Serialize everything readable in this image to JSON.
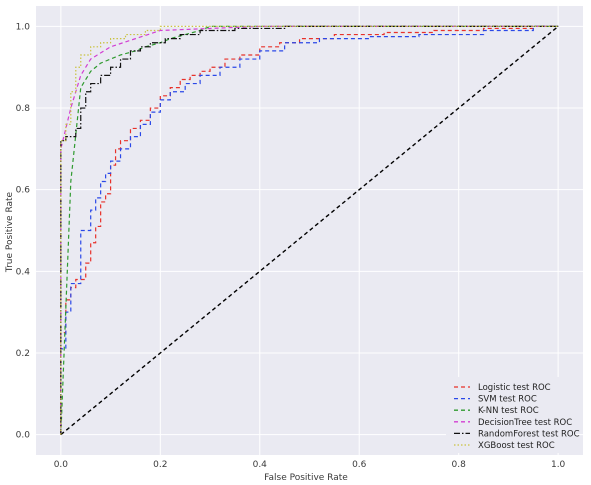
{
  "chart_data": {
    "type": "line",
    "title": "",
    "xlabel": "False Positive Rate",
    "ylabel": "True Positive Rate",
    "xlim": [
      -0.05,
      1.05
    ],
    "ylim": [
      -0.05,
      1.05
    ],
    "xticks": [
      "0.0",
      "0.2",
      "0.4",
      "0.6",
      "0.8",
      "1.0"
    ],
    "yticks": [
      "0.0",
      "0.2",
      "0.4",
      "0.6",
      "0.8",
      "1.0"
    ],
    "grid": true,
    "legend_position": "bottom-right",
    "chance_line": {
      "x": [
        0,
        1
      ],
      "y": [
        0,
        1
      ],
      "color": "#000000",
      "dash": "dashed"
    },
    "series": [
      {
        "name": "Logistic test ROC",
        "color": "#e8312a",
        "dash": "dashed",
        "x": [
          0,
          0,
          0.01,
          0.01,
          0.02,
          0.02,
          0.03,
          0.03,
          0.05,
          0.05,
          0.06,
          0.06,
          0.07,
          0.07,
          0.08,
          0.08,
          0.09,
          0.09,
          0.1,
          0.1,
          0.11,
          0.11,
          0.12,
          0.12,
          0.14,
          0.14,
          0.16,
          0.16,
          0.18,
          0.18,
          0.2,
          0.2,
          0.22,
          0.22,
          0.24,
          0.24,
          0.26,
          0.26,
          0.28,
          0.28,
          0.3,
          0.3,
          0.33,
          0.33,
          0.36,
          0.36,
          0.4,
          0.4,
          0.44,
          0.44,
          0.48,
          0.48,
          0.55,
          0.55,
          0.65,
          0.65,
          0.75,
          0.75,
          0.85,
          0.85,
          0.95,
          0.95,
          1.0
        ],
        "y": [
          0,
          0.25,
          0.25,
          0.33,
          0.33,
          0.36,
          0.36,
          0.38,
          0.38,
          0.42,
          0.42,
          0.47,
          0.47,
          0.51,
          0.51,
          0.57,
          0.57,
          0.59,
          0.59,
          0.66,
          0.66,
          0.7,
          0.7,
          0.72,
          0.72,
          0.75,
          0.75,
          0.77,
          0.77,
          0.8,
          0.8,
          0.83,
          0.83,
          0.85,
          0.85,
          0.87,
          0.87,
          0.88,
          0.88,
          0.89,
          0.89,
          0.9,
          0.9,
          0.92,
          0.92,
          0.93,
          0.93,
          0.95,
          0.95,
          0.96,
          0.96,
          0.97,
          0.97,
          0.98,
          0.98,
          0.985,
          0.985,
          0.99,
          0.99,
          0.995,
          0.995,
          1.0,
          1.0
        ]
      },
      {
        "name": "SVM test ROC",
        "color": "#2a48e8",
        "dash": "dashed",
        "x": [
          0,
          0,
          0.01,
          0.01,
          0.02,
          0.02,
          0.04,
          0.04,
          0.06,
          0.06,
          0.07,
          0.07,
          0.08,
          0.08,
          0.09,
          0.09,
          0.1,
          0.1,
          0.12,
          0.12,
          0.14,
          0.14,
          0.16,
          0.16,
          0.18,
          0.18,
          0.2,
          0.2,
          0.22,
          0.22,
          0.25,
          0.25,
          0.28,
          0.28,
          0.32,
          0.32,
          0.36,
          0.36,
          0.4,
          0.4,
          0.45,
          0.45,
          0.52,
          0.52,
          0.62,
          0.62,
          0.72,
          0.72,
          0.85,
          0.85,
          0.95,
          0.95,
          1.0
        ],
        "y": [
          0,
          0.21,
          0.21,
          0.3,
          0.3,
          0.37,
          0.37,
          0.5,
          0.5,
          0.55,
          0.55,
          0.58,
          0.58,
          0.62,
          0.62,
          0.64,
          0.64,
          0.67,
          0.67,
          0.7,
          0.7,
          0.73,
          0.73,
          0.76,
          0.76,
          0.79,
          0.79,
          0.82,
          0.82,
          0.84,
          0.84,
          0.86,
          0.86,
          0.88,
          0.88,
          0.9,
          0.9,
          0.92,
          0.92,
          0.94,
          0.94,
          0.96,
          0.96,
          0.97,
          0.97,
          0.975,
          0.975,
          0.98,
          0.98,
          0.99,
          0.99,
          1.0,
          1.0
        ]
      },
      {
        "name": "K-NN test ROC",
        "color": "#2f9a2f",
        "dash": "dashed",
        "x": [
          0,
          0.02,
          0.04,
          0.06,
          0.08,
          0.1,
          0.12,
          0.15,
          0.17,
          0.2,
          0.22,
          0.25,
          0.28,
          0.3,
          0.4,
          0.6,
          0.8,
          1.0
        ],
        "y": [
          0,
          0.62,
          0.85,
          0.89,
          0.91,
          0.92,
          0.93,
          0.94,
          0.95,
          0.96,
          0.97,
          0.98,
          0.99,
          1.0,
          1.0,
          1.0,
          1.0,
          1.0
        ]
      },
      {
        "name": "DecisionTree test ROC",
        "color": "#d23fd2",
        "dash": "dashed",
        "x": [
          0,
          0.0,
          0.02,
          0.04,
          0.06,
          0.1,
          0.2,
          0.4,
          1.0
        ],
        "y": [
          0,
          0.7,
          0.8,
          0.88,
          0.92,
          0.95,
          0.99,
          1.0,
          1.0
        ]
      },
      {
        "name": "RandomForest test ROC",
        "color": "#111111",
        "dash": "dashdot",
        "x": [
          0,
          0,
          0.01,
          0.01,
          0.03,
          0.03,
          0.04,
          0.04,
          0.05,
          0.05,
          0.06,
          0.06,
          0.08,
          0.08,
          0.1,
          0.1,
          0.12,
          0.12,
          0.14,
          0.14,
          0.16,
          0.16,
          0.18,
          0.18,
          0.21,
          0.21,
          0.24,
          0.24,
          0.28,
          0.28,
          0.35,
          0.35,
          0.45,
          0.45,
          1.0
        ],
        "y": [
          0,
          0.72,
          0.72,
          0.73,
          0.73,
          0.75,
          0.75,
          0.8,
          0.8,
          0.84,
          0.84,
          0.86,
          0.86,
          0.88,
          0.88,
          0.9,
          0.9,
          0.92,
          0.92,
          0.94,
          0.94,
          0.95,
          0.95,
          0.96,
          0.96,
          0.97,
          0.97,
          0.98,
          0.98,
          0.99,
          0.99,
          0.995,
          0.995,
          1.0,
          1.0
        ]
      },
      {
        "name": "XGBoost test ROC",
        "color": "#c9c23f",
        "dash": "dotted",
        "x": [
          0,
          0,
          0.01,
          0.01,
          0.02,
          0.02,
          0.03,
          0.03,
          0.04,
          0.04,
          0.06,
          0.06,
          0.08,
          0.08,
          0.1,
          0.1,
          0.13,
          0.13,
          0.17,
          0.17,
          0.2,
          0.2,
          1.0
        ],
        "y": [
          0,
          0.72,
          0.72,
          0.76,
          0.76,
          0.84,
          0.84,
          0.9,
          0.9,
          0.93,
          0.93,
          0.95,
          0.95,
          0.96,
          0.96,
          0.97,
          0.97,
          0.98,
          0.98,
          0.99,
          0.99,
          1.0,
          1.0
        ]
      }
    ]
  }
}
